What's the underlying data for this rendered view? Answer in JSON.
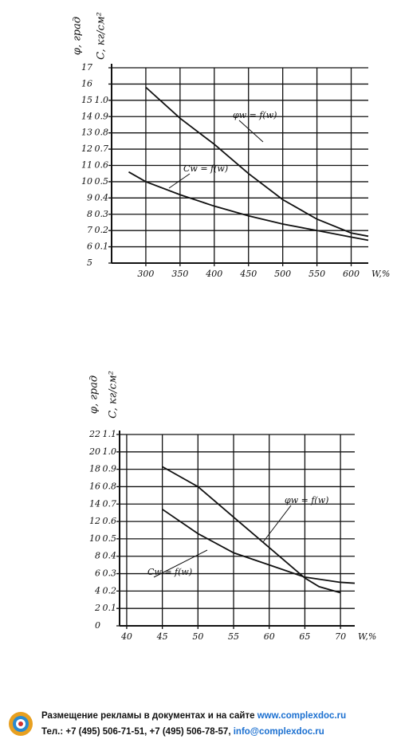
{
  "chart_data": [
    {
      "type": "line",
      "y_label": "φ, град",
      "y2_label": "C, кг/см²",
      "x_label": "W,%",
      "xlim": [
        250,
        625
      ],
      "xticks": [
        300,
        350,
        400,
        450,
        500,
        550,
        600
      ],
      "ylim": [
        5,
        17
      ],
      "yticks": [
        5,
        6,
        7,
        8,
        9,
        10,
        11,
        12,
        13,
        14,
        15,
        16,
        17
      ],
      "y2lim": [
        0,
        1.2
      ],
      "y2ticks": [
        0.1,
        0.2,
        0.3,
        0.4,
        0.5,
        0.6,
        0.7,
        0.8,
        0.9,
        {
          "value": 1,
          "label": "1.0"
        }
      ],
      "grid": true,
      "series": [
        {
          "name": "φw = f(w)",
          "color": "#111111",
          "x": [
            300,
            350,
            400,
            450,
            500,
            550,
            600,
            625
          ],
          "values": [
            15.8,
            13.9,
            12.3,
            10.5,
            8.9,
            7.7,
            6.85,
            6.65
          ]
        },
        {
          "name": "Cw = f(w)",
          "color": "#111111",
          "axis": "y2",
          "x": [
            275,
            300,
            350,
            400,
            450,
            500,
            550,
            600,
            625
          ],
          "values": [
            0.56,
            0.5,
            0.42,
            0.35,
            0.29,
            0.24,
            0.2,
            0.16,
            0.14
          ]
        }
      ]
    },
    {
      "type": "line",
      "y_label": "φ, град",
      "y2_label": "C, кг/см²",
      "x_label": "W,%",
      "xlim": [
        39,
        72
      ],
      "xticks": [
        40,
        45,
        50,
        55,
        60,
        65,
        70
      ],
      "ylim": [
        0,
        22
      ],
      "yticks": [
        0,
        2,
        4,
        6,
        8,
        10,
        12,
        14,
        16,
        18,
        20,
        22
      ],
      "y2lim": [
        0,
        1.1
      ],
      "y2ticks": [
        0.1,
        0.2,
        0.3,
        0.4,
        0.5,
        0.6,
        0.7,
        0.8,
        0.9,
        {
          "value": 1,
          "label": "1.0"
        },
        1.1
      ],
      "grid": true,
      "series": [
        {
          "name": "φw = f(w)",
          "color": "#111111",
          "x": [
            45,
            50,
            55,
            60,
            65,
            67,
            70
          ],
          "values": [
            18.3,
            16,
            12.5,
            9,
            5.5,
            4.5,
            3.8
          ]
        },
        {
          "name": "Cw = f(w)",
          "color": "#111111",
          "axis": "y2",
          "x": [
            45,
            50,
            55,
            60,
            65,
            70,
            72
          ],
          "values": [
            0.67,
            0.53,
            0.42,
            0.35,
            0.28,
            0.25,
            0.245
          ]
        }
      ]
    }
  ],
  "footer": {
    "line1_text": "Размещение рекламы в документах и на сайте",
    "line1_link": "www.complexdoc.ru",
    "line2_text": "Тел.: +7 (495) 506-71-51, +7 (495) 506-78-57,",
    "line2_link": "info@complexdoc.ru"
  }
}
